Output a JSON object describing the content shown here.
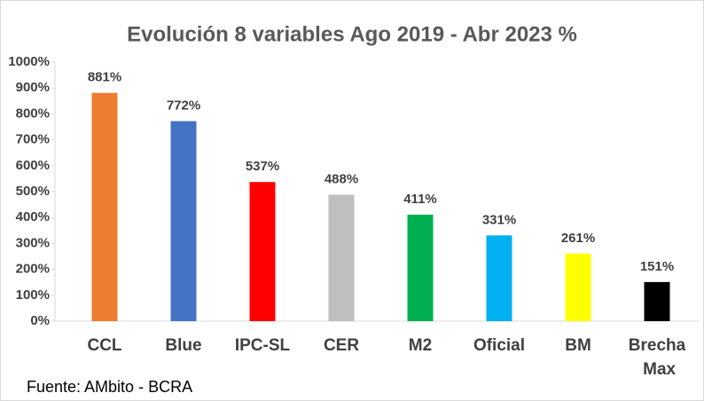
{
  "chart_data": {
    "type": "bar",
    "title": "Evolución 8 variables Ago 2019 - Abr 2023 %",
    "categories": [
      "CCL",
      "Blue",
      "IPC-SL",
      "CER",
      "M2",
      "Oficial",
      "BM",
      "Brecha Max"
    ],
    "values": [
      881,
      772,
      537,
      488,
      411,
      331,
      261,
      151
    ],
    "value_labels": [
      "881%",
      "772%",
      "537%",
      "488%",
      "411%",
      "331%",
      "261%",
      "151%"
    ],
    "colors": [
      "#ed7d31",
      "#4472c4",
      "#ff0000",
      "#bfbfbf",
      "#00b050",
      "#00b0f0",
      "#ffff00",
      "#000000"
    ],
    "ylim": [
      0,
      1000
    ],
    "yticks": [
      {
        "value": 0,
        "label": "0%"
      },
      {
        "value": 100,
        "label": "100%"
      },
      {
        "value": 200,
        "label": "200%"
      },
      {
        "value": 300,
        "label": "300%"
      },
      {
        "value": 400,
        "label": "400%"
      },
      {
        "value": 500,
        "label": "500%"
      },
      {
        "value": 600,
        "label": "600%"
      },
      {
        "value": 700,
        "label": "700%"
      },
      {
        "value": 800,
        "label": "800%"
      },
      {
        "value": 900,
        "label": "900%"
      },
      {
        "value": 1000,
        "label": "1000%"
      }
    ],
    "grid": false,
    "source": "Fuente: AMbito - BCRA"
  }
}
